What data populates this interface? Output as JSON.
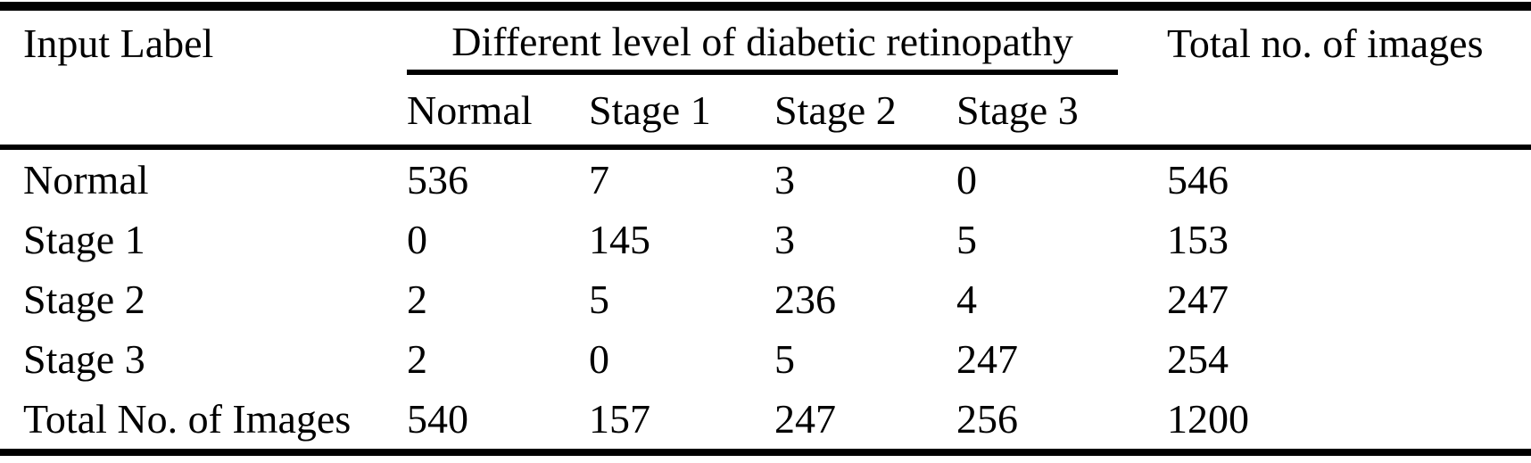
{
  "colors": {
    "background": "#ffffff",
    "text": "#000000",
    "rule": "#000000"
  },
  "table": {
    "corner_header": "Input Label",
    "group_header": "Different level of diabetic retinopathy",
    "total_header": "Total no. of images",
    "sub_headers": [
      "Normal",
      "Stage 1",
      "Stage 2",
      "Stage 3"
    ],
    "rows": [
      {
        "label": "Normal",
        "values": [
          "536",
          "7",
          "3",
          "0"
        ],
        "total": "546"
      },
      {
        "label": "Stage 1",
        "values": [
          "0",
          "145",
          "3",
          "5"
        ],
        "total": "153"
      },
      {
        "label": "Stage 2",
        "values": [
          "2",
          "5",
          "236",
          "4"
        ],
        "total": "247"
      },
      {
        "label": "Stage 3",
        "values": [
          "2",
          "0",
          "5",
          "247"
        ],
        "total": "254"
      },
      {
        "label": "Total No. of Images",
        "values": [
          "540",
          "157",
          "247",
          "256"
        ],
        "total": "1200"
      }
    ]
  },
  "chart_data": {
    "type": "table",
    "column_group_label": "Different level of diabetic retinopathy",
    "columns": [
      "Input Label",
      "Normal",
      "Stage 1",
      "Stage 2",
      "Stage 3",
      "Total no. of images"
    ],
    "rows": [
      [
        "Normal",
        536,
        7,
        3,
        0,
        546
      ],
      [
        "Stage 1",
        0,
        145,
        3,
        5,
        153
      ],
      [
        "Stage 2",
        2,
        5,
        236,
        4,
        247
      ],
      [
        "Stage 3",
        2,
        0,
        5,
        247,
        254
      ],
      [
        "Total No. of Images",
        540,
        157,
        247,
        256,
        1200
      ]
    ]
  }
}
